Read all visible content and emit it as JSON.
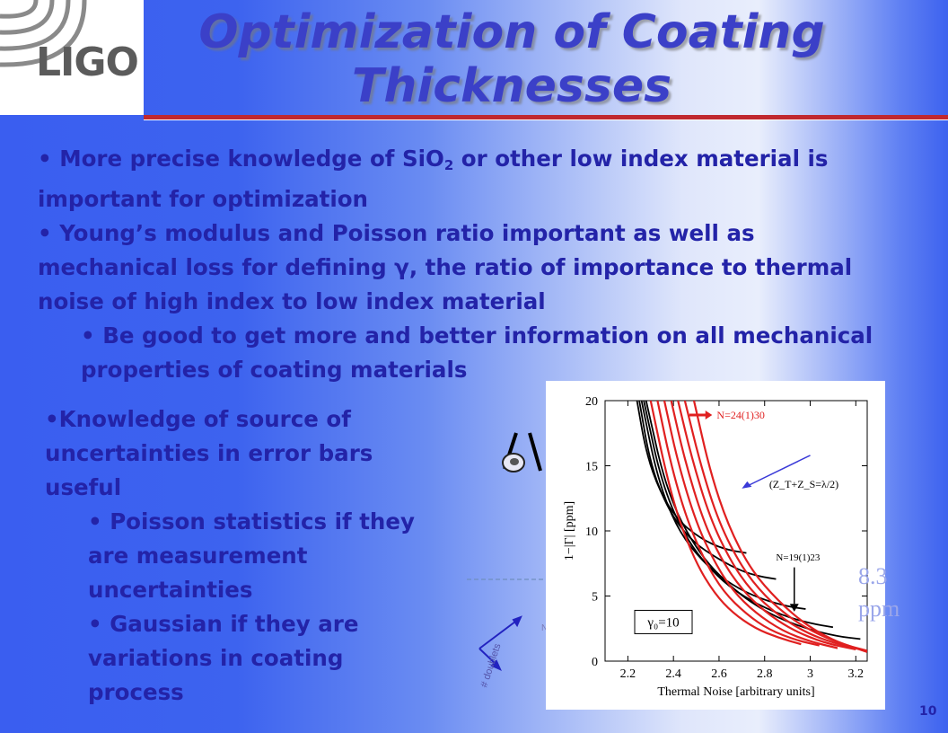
{
  "logo": {
    "text": "LIGO"
  },
  "title": "Optimization of Coating Thicknesses",
  "bullets_top": [
    {
      "pre": "• More precise knowledge of SiO",
      "sub": "2",
      "post": " or other low index material is important for optimization"
    },
    {
      "text": "• Young’s modulus and Poisson ratio important as well as mechanical loss for defining γ, the ratio of importance to thermal noise of high index to low index material"
    },
    {
      "text": "• Be good to get more and better information on all mechanical properties of coating materials"
    }
  ],
  "bullets_left": [
    {
      "text": "•Knowledge of source of uncertainties in error bars useful"
    },
    {
      "text": "• Poisson statistics if they are measurement uncertainties"
    },
    {
      "text": "• Gaussian if they are variations in coating process"
    }
  ],
  "annotations": {
    "ppm_value": "8.3",
    "ppm_unit": "ppm",
    "noise_label": "Noise",
    "doublets_label": "# doublets",
    "gamma_box": "γ₀=10",
    "page_number": "10"
  },
  "colors": {
    "title": "#3b40c8",
    "text": "#2323a8",
    "rule": "#c0282f",
    "red_curves": "#e02020",
    "black_curves": "#000000",
    "arrow_blue": "#3a3ad8"
  },
  "chart_data": {
    "type": "line",
    "xlabel": "Thermal Noise [arbitrary units]",
    "ylabel": "1−|Γ|  [ppm]",
    "xlim": [
      2.1,
      3.25
    ],
    "ylim": [
      0,
      20
    ],
    "xticks": [
      "2.2",
      "2.4",
      "2.6",
      "2.8",
      "3",
      "3.2"
    ],
    "yticks": [
      "0",
      "5",
      "10",
      "15",
      "20"
    ],
    "annotations": [
      "N=24(1)30",
      "(Z_T+Z_S=λ/2)",
      "N=19(1)23"
    ],
    "reference_line_y": 6.0,
    "series": [
      {
        "group": "black",
        "points": [
          [
            2.24,
            20
          ],
          [
            2.28,
            16
          ],
          [
            2.34,
            13
          ],
          [
            2.42,
            10.8
          ],
          [
            2.52,
            9.4
          ],
          [
            2.62,
            8.6
          ],
          [
            2.72,
            8.3
          ]
        ]
      },
      {
        "group": "black",
        "points": [
          [
            2.25,
            20
          ],
          [
            2.3,
            15
          ],
          [
            2.38,
            11.5
          ],
          [
            2.48,
            9.2
          ],
          [
            2.6,
            7.8
          ],
          [
            2.7,
            6.9
          ],
          [
            2.78,
            6.5
          ],
          [
            2.85,
            6.3
          ]
        ]
      },
      {
        "group": "black",
        "points": [
          [
            2.26,
            20
          ],
          [
            2.33,
            14
          ],
          [
            2.42,
            10
          ],
          [
            2.54,
            7.4
          ],
          [
            2.66,
            5.8
          ],
          [
            2.78,
            4.8
          ],
          [
            2.9,
            4.2
          ],
          [
            2.98,
            4.0
          ]
        ]
      },
      {
        "group": "black",
        "points": [
          [
            2.27,
            20
          ],
          [
            2.35,
            13.5
          ],
          [
            2.46,
            9.2
          ],
          [
            2.6,
            6.3
          ],
          [
            2.74,
            4.6
          ],
          [
            2.88,
            3.5
          ],
          [
            3.0,
            2.9
          ],
          [
            3.1,
            2.6
          ]
        ]
      },
      {
        "group": "black",
        "points": [
          [
            2.28,
            20
          ],
          [
            2.37,
            13
          ],
          [
            2.5,
            8.5
          ],
          [
            2.66,
            5.5
          ],
          [
            2.82,
            3.6
          ],
          [
            2.98,
            2.5
          ],
          [
            3.12,
            1.9
          ],
          [
            3.22,
            1.7
          ]
        ]
      },
      {
        "group": "red",
        "points": [
          [
            2.3,
            20
          ],
          [
            2.36,
            15
          ],
          [
            2.42,
            11
          ],
          [
            2.5,
            7.5
          ],
          [
            2.58,
            5.2
          ],
          [
            2.66,
            3.7
          ],
          [
            2.76,
            2.5
          ],
          [
            2.86,
            1.8
          ],
          [
            2.96,
            1.3
          ]
        ]
      },
      {
        "group": "red",
        "points": [
          [
            2.33,
            20
          ],
          [
            2.39,
            15
          ],
          [
            2.46,
            10.8
          ],
          [
            2.54,
            7.6
          ],
          [
            2.62,
            5.3
          ],
          [
            2.72,
            3.6
          ],
          [
            2.82,
            2.4
          ],
          [
            2.94,
            1.6
          ],
          [
            3.04,
            1.2
          ]
        ]
      },
      {
        "group": "red",
        "points": [
          [
            2.36,
            20
          ],
          [
            2.42,
            15.2
          ],
          [
            2.5,
            10.6
          ],
          [
            2.58,
            7.6
          ],
          [
            2.66,
            5.4
          ],
          [
            2.76,
            3.7
          ],
          [
            2.88,
            2.3
          ],
          [
            3.0,
            1.5
          ],
          [
            3.12,
            1.0
          ]
        ]
      },
      {
        "group": "red",
        "points": [
          [
            2.39,
            20
          ],
          [
            2.45,
            15.4
          ],
          [
            2.53,
            10.8
          ],
          [
            2.61,
            7.8
          ],
          [
            2.7,
            5.5
          ],
          [
            2.8,
            3.8
          ],
          [
            2.92,
            2.4
          ],
          [
            3.06,
            1.4
          ],
          [
            3.2,
            0.9
          ]
        ]
      },
      {
        "group": "red",
        "points": [
          [
            2.42,
            20
          ],
          [
            2.48,
            15.6
          ],
          [
            2.56,
            11
          ],
          [
            2.65,
            7.7
          ],
          [
            2.74,
            5.4
          ],
          [
            2.86,
            3.5
          ],
          [
            2.98,
            2.2
          ],
          [
            3.1,
            1.4
          ],
          [
            3.22,
            0.9
          ]
        ]
      },
      {
        "group": "red",
        "points": [
          [
            2.45,
            20
          ],
          [
            2.52,
            15
          ],
          [
            2.6,
            10.6
          ],
          [
            2.7,
            7.2
          ],
          [
            2.8,
            5.0
          ],
          [
            2.92,
            3.2
          ],
          [
            3.04,
            2.0
          ],
          [
            3.16,
            1.2
          ],
          [
            3.25,
            0.8
          ]
        ]
      },
      {
        "group": "red",
        "points": [
          [
            2.49,
            20
          ],
          [
            2.56,
            14.6
          ],
          [
            2.64,
            10.4
          ],
          [
            2.74,
            7.0
          ],
          [
            2.86,
            4.6
          ],
          [
            2.98,
            2.8
          ],
          [
            3.1,
            1.6
          ],
          [
            3.2,
            1.0
          ],
          [
            3.25,
            0.7
          ]
        ]
      }
    ]
  }
}
